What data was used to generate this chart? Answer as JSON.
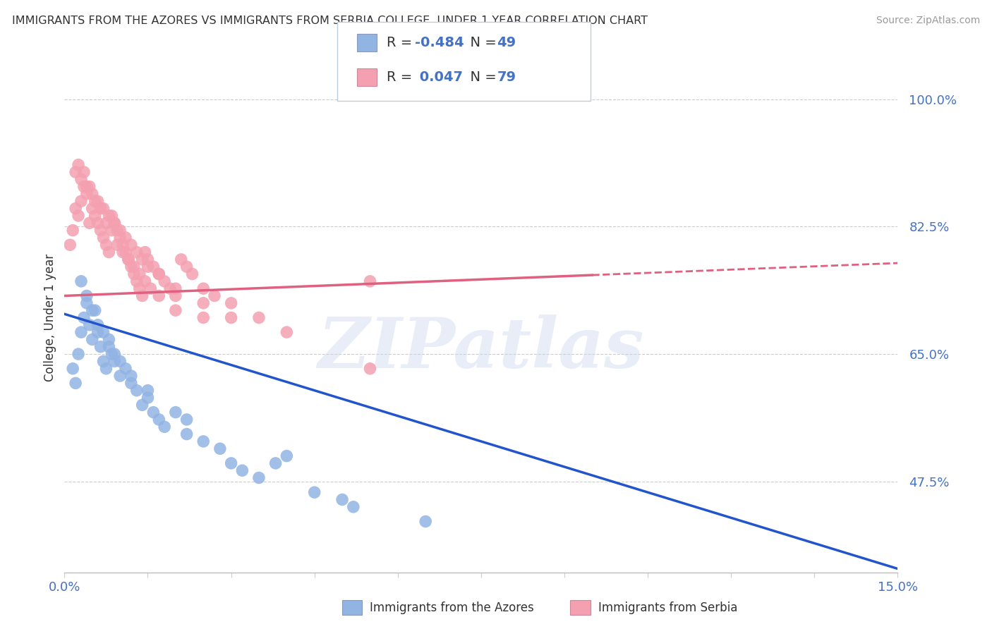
{
  "title": "IMMIGRANTS FROM THE AZORES VS IMMIGRANTS FROM SERBIA COLLEGE, UNDER 1 YEAR CORRELATION CHART",
  "source": "Source: ZipAtlas.com",
  "ylabel": "College, Under 1 year",
  "xmin": 0.0,
  "xmax": 15.0,
  "ymin": 35.0,
  "ymax": 105.0,
  "yticks": [
    47.5,
    65.0,
    82.5,
    100.0
  ],
  "xtick_positions": [
    0.0,
    1.5,
    3.0,
    4.5,
    6.0,
    7.5,
    9.0,
    10.5,
    12.0,
    13.5,
    15.0
  ],
  "series1_name": "Immigrants from the Azores",
  "series1_color": "#92b4e3",
  "series1_line_color": "#2255cc",
  "series1_R": -0.484,
  "series1_N": 49,
  "series2_name": "Immigrants from Serbia",
  "series2_color": "#f4a0b0",
  "series2_line_color": "#e06080",
  "series2_R": 0.047,
  "series2_N": 79,
  "watermark": "ZIPatlas",
  "title_color": "#333333",
  "axis_color": "#4472c4",
  "azores_x": [
    0.15,
    0.2,
    0.25,
    0.3,
    0.35,
    0.4,
    0.45,
    0.5,
    0.55,
    0.6,
    0.65,
    0.7,
    0.75,
    0.8,
    0.85,
    0.9,
    1.0,
    1.1,
    1.2,
    1.3,
    1.4,
    1.5,
    1.6,
    1.7,
    1.8,
    2.0,
    2.2,
    2.5,
    2.8,
    3.0,
    3.2,
    3.5,
    3.8,
    4.0,
    4.5,
    5.0,
    5.2,
    6.5,
    0.3,
    0.4,
    0.5,
    0.6,
    0.7,
    0.8,
    0.9,
    1.0,
    1.2,
    1.5,
    2.2
  ],
  "azores_y": [
    63,
    61,
    65,
    68,
    70,
    72,
    69,
    67,
    71,
    68,
    66,
    64,
    63,
    67,
    65,
    64,
    62,
    63,
    61,
    60,
    58,
    59,
    57,
    56,
    55,
    57,
    54,
    53,
    52,
    50,
    49,
    48,
    50,
    51,
    46,
    45,
    44,
    42,
    75,
    73,
    71,
    69,
    68,
    66,
    65,
    64,
    62,
    60,
    56
  ],
  "serbia_x": [
    0.1,
    0.15,
    0.2,
    0.25,
    0.3,
    0.35,
    0.4,
    0.45,
    0.5,
    0.55,
    0.6,
    0.65,
    0.7,
    0.75,
    0.8,
    0.85,
    0.9,
    0.95,
    1.0,
    1.05,
    1.1,
    1.15,
    1.2,
    1.25,
    1.3,
    1.35,
    1.4,
    1.45,
    1.5,
    1.6,
    1.7,
    1.8,
    1.9,
    2.0,
    2.1,
    2.2,
    2.3,
    2.5,
    2.7,
    3.0,
    3.5,
    0.2,
    0.3,
    0.4,
    0.5,
    0.6,
    0.7,
    0.8,
    0.9,
    1.0,
    1.1,
    1.2,
    1.3,
    1.4,
    1.5,
    1.7,
    2.0,
    2.5,
    3.0,
    4.0,
    5.5,
    5.5,
    0.25,
    0.35,
    0.45,
    0.55,
    0.65,
    0.75,
    0.85,
    0.95,
    1.05,
    1.15,
    1.25,
    1.35,
    1.45,
    1.55,
    1.7,
    2.0,
    2.5
  ],
  "serbia_y": [
    80,
    82,
    85,
    84,
    86,
    88,
    87,
    83,
    85,
    84,
    83,
    82,
    81,
    80,
    79,
    84,
    83,
    82,
    81,
    80,
    79,
    78,
    77,
    76,
    75,
    74,
    73,
    79,
    78,
    77,
    76,
    75,
    74,
    73,
    78,
    77,
    76,
    74,
    73,
    72,
    70,
    90,
    89,
    88,
    87,
    86,
    85,
    84,
    83,
    82,
    81,
    80,
    79,
    78,
    77,
    76,
    74,
    72,
    70,
    68,
    75,
    63,
    91,
    90,
    88,
    86,
    85,
    83,
    82,
    80,
    79,
    78,
    77,
    76,
    75,
    74,
    73,
    71,
    70
  ],
  "serbia_solid_xmax": 9.5,
  "line_az_y0": 70.5,
  "line_az_y1": 35.5,
  "line_ser_y0": 73.0,
  "line_ser_y1": 77.5
}
